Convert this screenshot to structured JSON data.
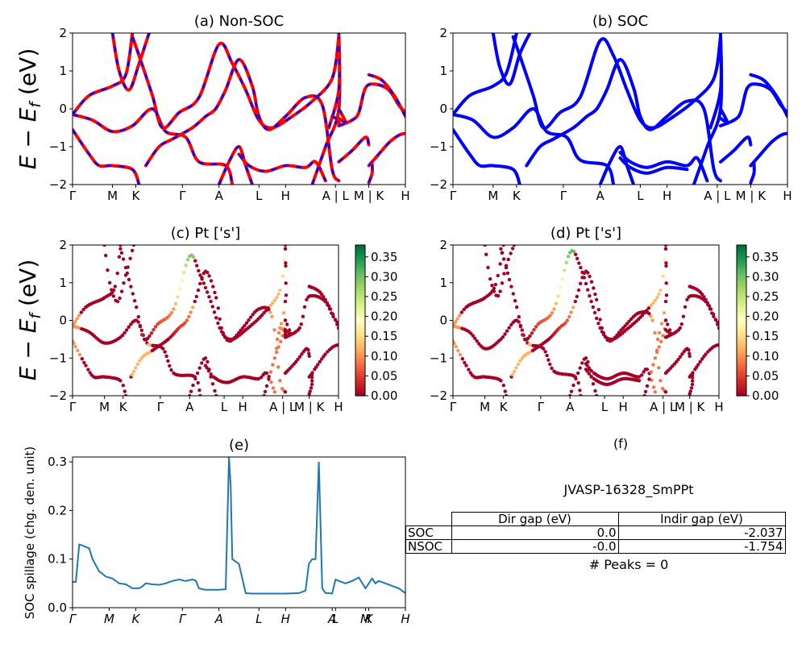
{
  "chart_data": [
    {
      "id": "a",
      "type": "line",
      "title": "(a) Non-SOC",
      "ylabel": "E − E_f (eV)",
      "ylim": [
        -2,
        2
      ],
      "yticks": [
        "−2",
        "−1",
        "0",
        "1",
        "2"
      ],
      "kpath_labels": [
        "Γ",
        "M",
        "K",
        "Γ",
        "A",
        "L",
        "H",
        "A | L",
        "M | K",
        "H"
      ],
      "series_colors": [
        "#ff0000",
        "#0000ff"
      ],
      "style": "red solid with blue dashes overlay",
      "bands": [
        [
          [
            0,
            -0.15
          ],
          [
            0.06,
            -0.3
          ],
          [
            0.12,
            -0.6
          ],
          [
            0.18,
            -0.45
          ],
          [
            0.24,
            0.0
          ],
          [
            0.28,
            -0.6
          ],
          [
            0.34,
            -0.75
          ],
          [
            0.38,
            -1.4
          ],
          [
            0.46,
            -1.5
          ],
          [
            0.48,
            -2.0
          ]
        ],
        [
          [
            0,
            -0.55
          ],
          [
            0.05,
            -1.2
          ],
          [
            0.08,
            -1.5
          ],
          [
            0.12,
            -1.5
          ],
          [
            0.18,
            -1.6
          ],
          [
            0.2,
            -2.0
          ]
        ],
        [
          [
            0,
            -0.15
          ],
          [
            0.05,
            0.35
          ],
          [
            0.12,
            0.6
          ],
          [
            0.16,
            0.9
          ],
          [
            0.18,
            2.0
          ]
        ],
        [
          [
            0.12,
            2.0
          ],
          [
            0.14,
            1.0
          ],
          [
            0.17,
            0.5
          ],
          [
            0.2,
            1.2
          ],
          [
            0.23,
            2.0
          ]
        ],
        [
          [
            0.18,
            1.9
          ],
          [
            0.2,
            1.4
          ],
          [
            0.24,
            0.35
          ],
          [
            0.27,
            -0.5
          ],
          [
            0.32,
            -0.1
          ],
          [
            0.38,
            0.3
          ],
          [
            0.44,
            1.7
          ],
          [
            0.48,
            1.2
          ],
          [
            0.52,
            0.5
          ],
          [
            0.56,
            -0.3
          ],
          [
            0.6,
            -0.5
          ],
          [
            0.66,
            -0.2
          ],
          [
            0.72,
            0.2
          ],
          [
            0.78,
            0.8
          ],
          [
            0.8,
            1.9
          ]
        ],
        [
          [
            0.22,
            -1.5
          ],
          [
            0.26,
            -1.0
          ],
          [
            0.3,
            -0.8
          ],
          [
            0.36,
            -0.5
          ],
          [
            0.4,
            -0.2
          ],
          [
            0.43,
            0.0
          ],
          [
            0.46,
            0.5
          ],
          [
            0.5,
            1.3
          ],
          [
            0.54,
            0.6
          ],
          [
            0.56,
            -0.2
          ],
          [
            0.59,
            -0.55
          ],
          [
            0.64,
            -0.2
          ],
          [
            0.7,
            0.3
          ],
          [
            0.75,
            0.1
          ],
          [
            0.78,
            -1.6
          ],
          [
            0.8,
            -1.9
          ]
        ],
        [
          [
            0.44,
            -2.0
          ],
          [
            0.47,
            -1.4
          ],
          [
            0.5,
            -1.0
          ],
          [
            0.52,
            -1.5
          ],
          [
            0.54,
            -2.0
          ]
        ],
        [
          [
            0.5,
            -1.2
          ],
          [
            0.53,
            -1.5
          ],
          [
            0.58,
            -1.65
          ],
          [
            0.64,
            -1.5
          ],
          [
            0.7,
            -1.55
          ],
          [
            0.73,
            -1.4
          ],
          [
            0.76,
            -1.9
          ]
        ],
        [
          [
            0.72,
            -2.0
          ],
          [
            0.76,
            -1.0
          ],
          [
            0.8,
            0.0
          ],
          [
            0.8,
            2.0
          ]
        ],
        [
          [
            0.77,
            -0.5
          ],
          [
            0.8,
            0.5
          ],
          [
            0.8,
            1.9
          ]
        ],
        [
          [
            0.78,
            -0.2
          ],
          [
            0.8,
            -0.3
          ],
          [
            0.8,
            -0.4
          ]
        ],
        [
          [
            0.8,
            -0.45
          ],
          [
            0.84,
            -0.3
          ],
          [
            0.86,
            -0.1
          ],
          [
            0.88,
            0.55
          ],
          [
            0.91,
            0.65
          ],
          [
            0.95,
            0.5
          ],
          [
            0.98,
            0.1
          ],
          [
            1.0,
            -0.1
          ]
        ],
        [
          [
            0.8,
            -1.4
          ],
          [
            0.84,
            -1.1
          ],
          [
            0.88,
            -0.75
          ],
          [
            0.89,
            -0.95
          ]
        ],
        [
          [
            0.89,
            0.9
          ],
          [
            0.93,
            0.75
          ],
          [
            0.97,
            0.3
          ],
          [
            1.0,
            -0.2
          ]
        ],
        [
          [
            0.89,
            -1.5
          ],
          [
            0.91,
            -1.3
          ],
          [
            0.95,
            -0.9
          ],
          [
            0.98,
            -0.7
          ],
          [
            1.0,
            -0.65
          ]
        ],
        [
          [
            0.89,
            -1.95
          ],
          [
            0.9,
            -1.7
          ],
          [
            0.9,
            -1.45
          ]
        ],
        [
          [
            0.8,
            0.0
          ],
          [
            0.82,
            -0.35
          ],
          [
            0.8,
            -0.25
          ]
        ]
      ]
    },
    {
      "id": "b",
      "type": "line",
      "title": "(b) SOC",
      "ylim": [
        -2,
        2
      ],
      "yticks": [
        "−2",
        "−1",
        "0",
        "1",
        "2"
      ],
      "kpath_labels": [
        "Γ",
        "M",
        "K",
        "Γ",
        "A",
        "L",
        "H",
        "A | L",
        "M | K",
        "H"
      ],
      "series_colors": [
        "#0000ff"
      ],
      "bands": [
        [
          [
            0,
            -0.15
          ],
          [
            0.06,
            -0.3
          ],
          [
            0.12,
            -0.75
          ],
          [
            0.18,
            -0.5
          ],
          [
            0.24,
            0.0
          ],
          [
            0.28,
            -0.6
          ],
          [
            0.34,
            -0.75
          ],
          [
            0.38,
            -1.35
          ],
          [
            0.46,
            -1.5
          ],
          [
            0.48,
            -2.0
          ]
        ],
        [
          [
            0,
            -0.55
          ],
          [
            0.05,
            -1.2
          ],
          [
            0.08,
            -1.5
          ],
          [
            0.12,
            -1.5
          ],
          [
            0.18,
            -1.6
          ],
          [
            0.2,
            -2.0
          ]
        ],
        [
          [
            0,
            -0.15
          ],
          [
            0.05,
            0.35
          ],
          [
            0.12,
            0.6
          ],
          [
            0.16,
            0.95
          ],
          [
            0.19,
            2.0
          ]
        ],
        [
          [
            0.12,
            2.0
          ],
          [
            0.14,
            1.1
          ],
          [
            0.17,
            0.65
          ],
          [
            0.2,
            1.45
          ],
          [
            0.23,
            2.0
          ]
        ],
        [
          [
            0.18,
            1.9
          ],
          [
            0.2,
            1.4
          ],
          [
            0.24,
            0.35
          ],
          [
            0.27,
            -0.5
          ],
          [
            0.32,
            -0.1
          ],
          [
            0.38,
            0.3
          ],
          [
            0.44,
            1.8
          ],
          [
            0.48,
            1.4
          ],
          [
            0.52,
            0.5
          ],
          [
            0.56,
            -0.3
          ],
          [
            0.6,
            -0.5
          ],
          [
            0.66,
            -0.2
          ],
          [
            0.72,
            0.2
          ],
          [
            0.78,
            0.8
          ],
          [
            0.8,
            1.9
          ]
        ],
        [
          [
            0.22,
            -1.5
          ],
          [
            0.26,
            -1.0
          ],
          [
            0.3,
            -0.8
          ],
          [
            0.36,
            -0.5
          ],
          [
            0.4,
            -0.2
          ],
          [
            0.43,
            0.0
          ],
          [
            0.46,
            0.5
          ],
          [
            0.5,
            1.3
          ],
          [
            0.54,
            0.55
          ],
          [
            0.56,
            -0.2
          ],
          [
            0.59,
            -0.55
          ],
          [
            0.64,
            -0.2
          ],
          [
            0.7,
            0.2
          ],
          [
            0.75,
            0.0
          ],
          [
            0.78,
            -1.6
          ],
          [
            0.8,
            -1.9
          ]
        ],
        [
          [
            0.44,
            -2.0
          ],
          [
            0.47,
            -1.4
          ],
          [
            0.5,
            -1.0
          ],
          [
            0.52,
            -1.5
          ],
          [
            0.54,
            -2.0
          ]
        ],
        [
          [
            0.5,
            -1.15
          ],
          [
            0.53,
            -1.4
          ],
          [
            0.58,
            -1.55
          ],
          [
            0.64,
            -1.4
          ],
          [
            0.7,
            -1.5
          ],
          [
            0.73,
            -1.3
          ],
          [
            0.76,
            -1.9
          ]
        ],
        [
          [
            0.5,
            -1.3
          ],
          [
            0.53,
            -1.55
          ],
          [
            0.58,
            -1.7
          ],
          [
            0.64,
            -1.55
          ],
          [
            0.7,
            -1.6
          ]
        ],
        [
          [
            0.72,
            -2.0
          ],
          [
            0.76,
            -1.0
          ],
          [
            0.8,
            0.0
          ],
          [
            0.8,
            2.0
          ]
        ],
        [
          [
            0.77,
            -0.5
          ],
          [
            0.8,
            0.5
          ],
          [
            0.8,
            1.9
          ]
        ],
        [
          [
            0.8,
            -0.45
          ],
          [
            0.84,
            -0.3
          ],
          [
            0.86,
            -0.1
          ],
          [
            0.88,
            0.55
          ],
          [
            0.91,
            0.65
          ],
          [
            0.95,
            0.5
          ],
          [
            0.98,
            0.1
          ],
          [
            1.0,
            -0.1
          ]
        ],
        [
          [
            0.8,
            -1.4
          ],
          [
            0.84,
            -1.1
          ],
          [
            0.88,
            -0.75
          ],
          [
            0.89,
            -0.95
          ]
        ],
        [
          [
            0.89,
            0.9
          ],
          [
            0.93,
            0.75
          ],
          [
            0.97,
            0.3
          ],
          [
            1.0,
            -0.2
          ]
        ],
        [
          [
            0.89,
            -1.5
          ],
          [
            0.91,
            -1.3
          ],
          [
            0.95,
            -0.9
          ],
          [
            0.98,
            -0.7
          ],
          [
            1.0,
            -0.65
          ]
        ],
        [
          [
            0.89,
            -1.95
          ],
          [
            0.9,
            -1.7
          ],
          [
            0.9,
            -1.45
          ]
        ],
        [
          [
            0.8,
            0.0
          ],
          [
            0.82,
            -0.35
          ],
          [
            0.8,
            -0.25
          ]
        ]
      ]
    },
    {
      "id": "c",
      "type": "scatter",
      "title": "(c)  Pt ['s']",
      "ylabel": "E − E_f (eV)",
      "ylim": [
        -2,
        2
      ],
      "yticks": [
        "−2",
        "−1",
        "0",
        "1",
        "2"
      ],
      "kpath_labels": [
        "Γ",
        "M",
        "K",
        "Γ",
        "A",
        "L",
        "H",
        "A | L",
        "M | K",
        "H"
      ],
      "colorbar": {
        "min": 0.0,
        "max": 0.38,
        "ticks": [
          "0.00",
          "0.05",
          "0.10",
          "0.15",
          "0.20",
          "0.25",
          "0.30",
          "0.35"
        ],
        "colormap": "RdYlGn"
      }
    },
    {
      "id": "d",
      "type": "scatter",
      "title": "(d) Pt ['s']",
      "ylim": [
        -2,
        2
      ],
      "yticks": [
        "−2",
        "−1",
        "0",
        "1",
        "2"
      ],
      "kpath_labels": [
        "Γ",
        "M",
        "K",
        "Γ",
        "A",
        "L",
        "H",
        "A | L",
        "M | K",
        "H"
      ],
      "colorbar": {
        "min": 0.0,
        "max": 0.38,
        "ticks": [
          "0.00",
          "0.05",
          "0.10",
          "0.15",
          "0.20",
          "0.25",
          "0.30",
          "0.35"
        ],
        "colormap": "RdYlGn"
      }
    },
    {
      "id": "e",
      "type": "line",
      "title": "(e)",
      "ylabel": "SOC spillage (chg. den. unit)",
      "ylim": [
        0.0,
        0.31
      ],
      "yticks": [
        "0.0",
        "0.1",
        "0.2",
        "0.3"
      ],
      "kpath_labels": [
        "Γ",
        "M",
        "K",
        "Γ",
        "A",
        "L",
        "H",
        "A",
        "L",
        "M",
        "K",
        "H"
      ],
      "color": "#1f77b4",
      "x": [
        0,
        0.01,
        0.02,
        0.03,
        0.05,
        0.06,
        0.08,
        0.1,
        0.12,
        0.14,
        0.16,
        0.18,
        0.2,
        0.21,
        0.22,
        0.24,
        0.26,
        0.28,
        0.3,
        0.32,
        0.34,
        0.36,
        0.37,
        0.38,
        0.39,
        0.4,
        0.42,
        0.44,
        0.46,
        0.47,
        0.475,
        0.48,
        0.5,
        0.52,
        0.54,
        0.56,
        0.6,
        0.64,
        0.68,
        0.7,
        0.71,
        0.72,
        0.73,
        0.74,
        0.75,
        0.76,
        0.77,
        0.78,
        0.79,
        0.8,
        0.82,
        0.84,
        0.86,
        0.88,
        0.9,
        0.91,
        0.92,
        0.94,
        0.96,
        0.98,
        1.0
      ],
      "values": [
        0.053,
        0.053,
        0.13,
        0.128,
        0.122,
        0.1,
        0.075,
        0.064,
        0.06,
        0.05,
        0.048,
        0.04,
        0.04,
        0.044,
        0.05,
        0.048,
        0.047,
        0.05,
        0.055,
        0.058,
        0.055,
        0.058,
        0.056,
        0.04,
        0.038,
        0.037,
        0.037,
        0.037,
        0.038,
        0.31,
        0.25,
        0.1,
        0.09,
        0.03,
        0.029,
        0.029,
        0.029,
        0.029,
        0.03,
        0.035,
        0.09,
        0.1,
        0.1,
        0.3,
        0.04,
        0.03,
        0.03,
        0.029,
        0.058,
        0.055,
        0.05,
        0.055,
        0.062,
        0.04,
        0.06,
        0.05,
        0.055,
        0.05,
        0.045,
        0.04,
        0.03
      ]
    }
  ],
  "panel_f": {
    "title": "(f)",
    "material": "JVASP-16328_SmPPt",
    "columns": [
      "Dir gap (eV)",
      "Indir gap (eV)"
    ],
    "rows": [
      {
        "label": "SOC",
        "dir": "0.0",
        "indir": "-2.037"
      },
      {
        "label": "NSOC",
        "dir": "-0.0",
        "indir": "-1.754"
      }
    ],
    "peaks": "# Peaks = 0"
  }
}
